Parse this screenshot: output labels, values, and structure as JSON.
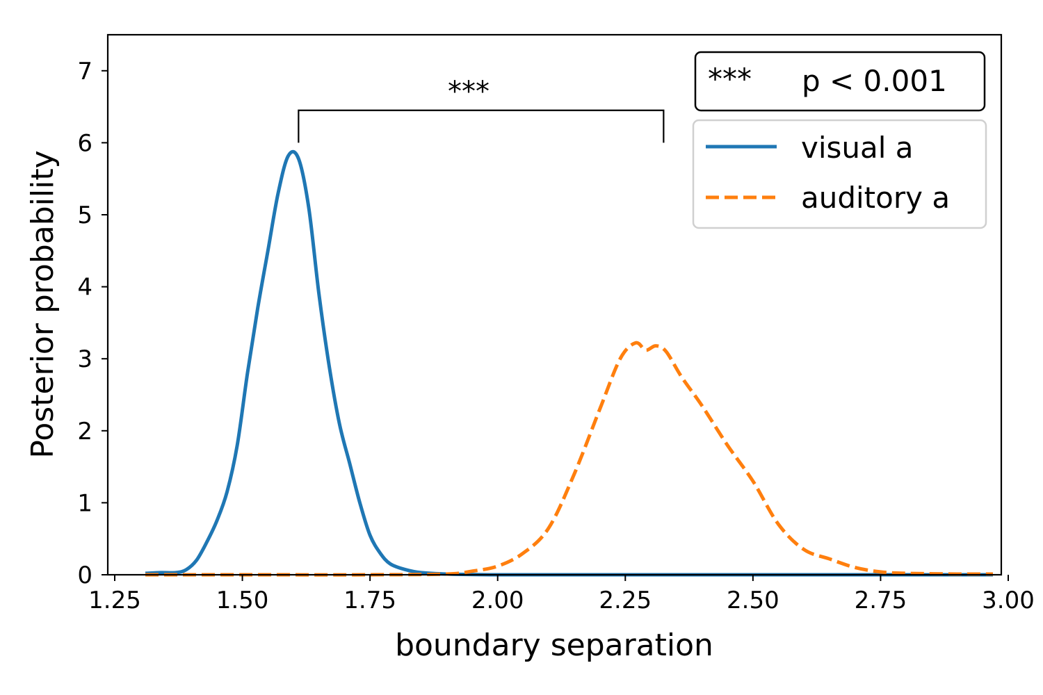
{
  "chart_data": {
    "type": "line",
    "xlabel": "boundary separation",
    "ylabel": "Posterior probability",
    "xlim": [
      1.25,
      3.0
    ],
    "ylim": [
      0,
      7.5
    ],
    "xticks": [
      "1.25",
      "1.50",
      "1.75",
      "2.00",
      "2.25",
      "2.50",
      "2.75",
      "3.00"
    ],
    "yticks": [
      "0",
      "1",
      "2",
      "3",
      "4",
      "5",
      "6",
      "7"
    ],
    "grid": false,
    "legend_position": "top-right",
    "series": [
      {
        "name": "visual a",
        "color": "#1f77b4",
        "style": "solid",
        "x": [
          1.31,
          1.34,
          1.37,
          1.39,
          1.41,
          1.43,
          1.45,
          1.47,
          1.49,
          1.51,
          1.53,
          1.55,
          1.57,
          1.59,
          1.61,
          1.63,
          1.65,
          1.67,
          1.69,
          1.71,
          1.73,
          1.75,
          1.77,
          1.79,
          1.82,
          1.85,
          1.9,
          2.0,
          2.25,
          2.5,
          2.75,
          2.97
        ],
        "y": [
          0.02,
          0.03,
          0.03,
          0.07,
          0.2,
          0.45,
          0.75,
          1.15,
          1.8,
          2.8,
          3.7,
          4.5,
          5.3,
          5.82,
          5.78,
          5.1,
          3.9,
          2.9,
          2.1,
          1.55,
          1.0,
          0.55,
          0.3,
          0.15,
          0.07,
          0.03,
          0.01,
          0.0,
          0.0,
          0.0,
          0.0,
          0.0
        ]
      },
      {
        "name": "auditory a",
        "color": "#ff7f0e",
        "style": "dashed",
        "x": [
          1.31,
          1.5,
          1.75,
          1.9,
          1.95,
          2.0,
          2.05,
          2.1,
          2.15,
          2.2,
          2.24,
          2.27,
          2.29,
          2.31,
          2.33,
          2.36,
          2.4,
          2.45,
          2.5,
          2.55,
          2.6,
          2.65,
          2.7,
          2.75,
          2.8,
          2.9,
          2.97
        ],
        "y": [
          0.0,
          0.0,
          0.0,
          0.01,
          0.05,
          0.12,
          0.3,
          0.65,
          1.4,
          2.3,
          3.0,
          3.22,
          3.12,
          3.18,
          3.1,
          2.75,
          2.35,
          1.8,
          1.3,
          0.7,
          0.35,
          0.22,
          0.1,
          0.04,
          0.02,
          0.01,
          0.01
        ]
      }
    ],
    "annotations": {
      "bracket": {
        "x1": 1.61,
        "x2": 2.325,
        "top": 6.45,
        "left_bottom": 6.0,
        "right_bottom": 6.0
      },
      "significance_label": "***",
      "significance_box": {
        "stars": "***",
        "text": "p < 0.001"
      }
    }
  }
}
